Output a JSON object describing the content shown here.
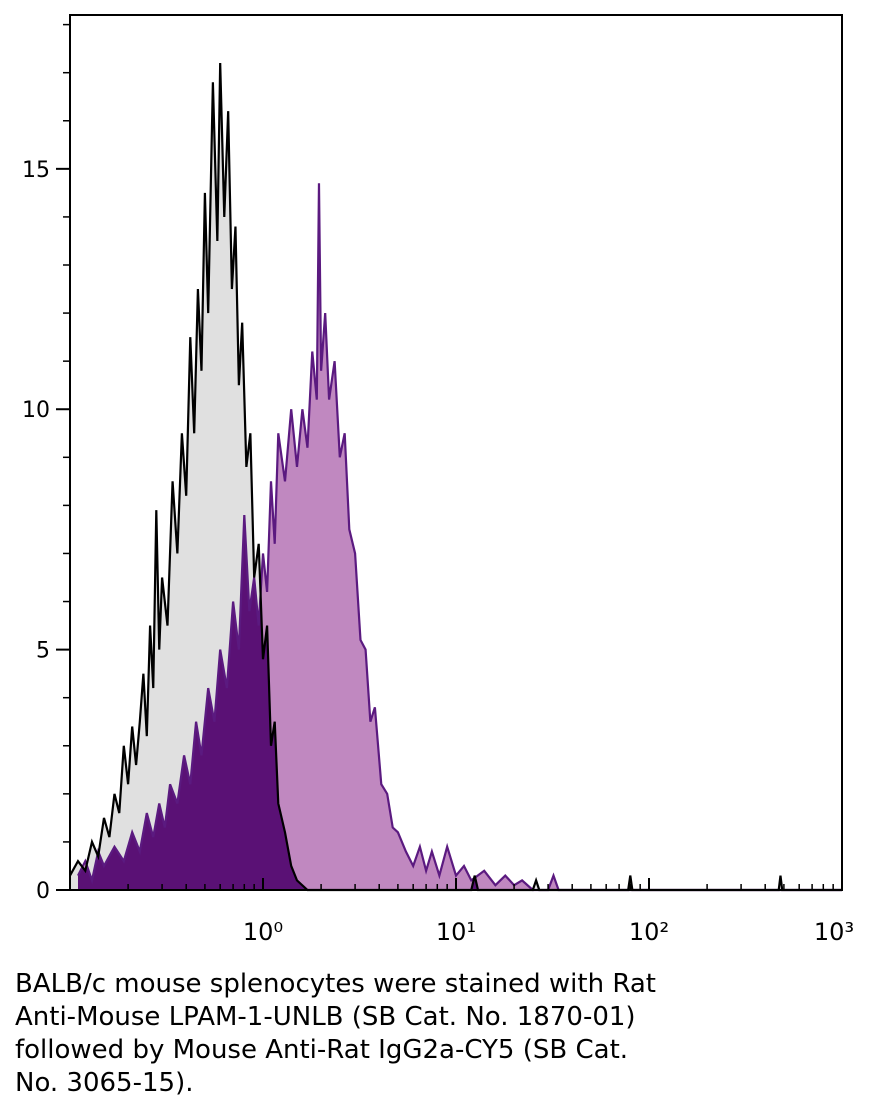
{
  "chart_data": {
    "type": "area",
    "xscale": "log",
    "xlim": [
      0.1,
      1000
    ],
    "xticks": [
      {
        "value": 1,
        "label": "10⁰"
      },
      {
        "value": 10,
        "label": "10¹"
      },
      {
        "value": 100,
        "label": "10²"
      },
      {
        "value": 1000,
        "label": "10³"
      }
    ],
    "xticks_minor": [
      0.2,
      0.3,
      0.4,
      0.5,
      0.6,
      0.7,
      0.8,
      0.9,
      2,
      3,
      4,
      5,
      6,
      7,
      8,
      9,
      20,
      30,
      40,
      50,
      60,
      70,
      80,
      90,
      200,
      300,
      400,
      500,
      600,
      700,
      800,
      900
    ],
    "ylim": [
      0,
      18.2
    ],
    "yticks": [
      0,
      5,
      10,
      15
    ],
    "yticks_minor": [
      1,
      2,
      3,
      4,
      6,
      7,
      8,
      9,
      11,
      12,
      13,
      14,
      16,
      17,
      18
    ],
    "series": [
      {
        "color": "#000000",
        "fill": "#e0e0e0",
        "x": [
          0.1,
          0.11,
          0.12,
          0.13,
          0.14,
          0.15,
          0.16,
          0.17,
          0.18,
          0.19,
          0.2,
          0.21,
          0.22,
          0.23,
          0.24,
          0.25,
          0.26,
          0.27,
          0.28,
          0.29,
          0.3,
          0.32,
          0.34,
          0.36,
          0.38,
          0.4,
          0.42,
          0.44,
          0.46,
          0.48,
          0.5,
          0.52,
          0.55,
          0.58,
          0.6,
          0.63,
          0.66,
          0.69,
          0.72,
          0.75,
          0.78,
          0.82,
          0.86,
          0.9,
          0.95,
          1.0,
          1.05,
          1.1,
          1.15,
          1.2,
          1.3,
          1.4,
          1.5,
          1.7,
          12,
          12.5,
          13,
          25,
          26,
          27,
          78,
          80,
          82,
          470,
          480,
          490,
          1000
        ],
        "values": [
          0.3,
          0.6,
          0.4,
          1.0,
          0.7,
          1.5,
          1.1,
          2.0,
          1.6,
          3.0,
          2.2,
          3.4,
          2.6,
          3.5,
          4.5,
          3.2,
          5.5,
          4.2,
          7.9,
          5.0,
          6.5,
          5.5,
          8.5,
          7.0,
          9.5,
          8.2,
          11.5,
          9.5,
          12.5,
          10.8,
          14.5,
          12.0,
          16.8,
          13.5,
          17.2,
          14.0,
          16.2,
          12.5,
          13.8,
          10.5,
          11.8,
          8.8,
          9.5,
          6.5,
          7.2,
          4.8,
          5.5,
          3.0,
          3.5,
          1.8,
          1.2,
          0.5,
          0.2,
          0,
          0,
          0.3,
          0,
          0,
          0.2,
          0,
          0,
          0.3,
          0,
          0,
          0.3,
          0,
          0
        ]
      },
      {
        "color": "#5b1a80",
        "fill": "#c088c0",
        "overlap_fill": "#5a1175",
        "x": [
          0.11,
          0.12,
          0.13,
          0.14,
          0.15,
          0.17,
          0.19,
          0.21,
          0.23,
          0.25,
          0.27,
          0.29,
          0.31,
          0.33,
          0.36,
          0.39,
          0.42,
          0.45,
          0.48,
          0.52,
          0.56,
          0.6,
          0.65,
          0.7,
          0.75,
          0.8,
          0.85,
          0.9,
          0.95,
          1.0,
          1.05,
          1.1,
          1.15,
          1.2,
          1.3,
          1.4,
          1.5,
          1.6,
          1.7,
          1.8,
          1.9,
          1.95,
          2.0,
          2.1,
          2.2,
          2.35,
          2.5,
          2.65,
          2.8,
          3.0,
          3.2,
          3.4,
          3.6,
          3.8,
          4.1,
          4.4,
          4.7,
          5.0,
          5.5,
          6.0,
          6.5,
          7.0,
          7.5,
          8.2,
          9.0,
          10,
          11,
          12,
          14,
          16,
          18,
          20,
          22,
          25,
          30,
          32,
          34,
          1000
        ],
        "values": [
          0.3,
          0.6,
          0.2,
          0.8,
          0.5,
          0.9,
          0.6,
          1.2,
          0.8,
          1.6,
          1.1,
          1.8,
          1.3,
          2.2,
          1.8,
          2.8,
          2.2,
          3.5,
          2.8,
          4.2,
          3.5,
          5.0,
          4.2,
          6.0,
          5.0,
          7.8,
          5.8,
          6.5,
          5.5,
          7.0,
          6.2,
          8.5,
          7.2,
          9.5,
          8.5,
          10.0,
          8.8,
          10.0,
          9.2,
          11.2,
          10.2,
          14.7,
          10.8,
          12.0,
          10.2,
          11.0,
          9.0,
          9.5,
          7.5,
          7.0,
          5.2,
          5.0,
          3.5,
          3.8,
          2.2,
          2.0,
          1.3,
          1.2,
          0.8,
          0.5,
          0.9,
          0.4,
          0.8,
          0.3,
          0.9,
          0.3,
          0.5,
          0.2,
          0.4,
          0.1,
          0.3,
          0.1,
          0.2,
          0,
          0,
          0.3,
          0,
          0
        ]
      }
    ],
    "caption": [
      "BALB/c mouse splenocytes were stained with Rat",
      "Anti-Mouse LPAM-1-UNLB (SB Cat. No. 1870-01)",
      "followed by Mouse Anti-Rat IgG2a-CY5 (SB Cat.",
      "No. 3065-15)."
    ]
  }
}
